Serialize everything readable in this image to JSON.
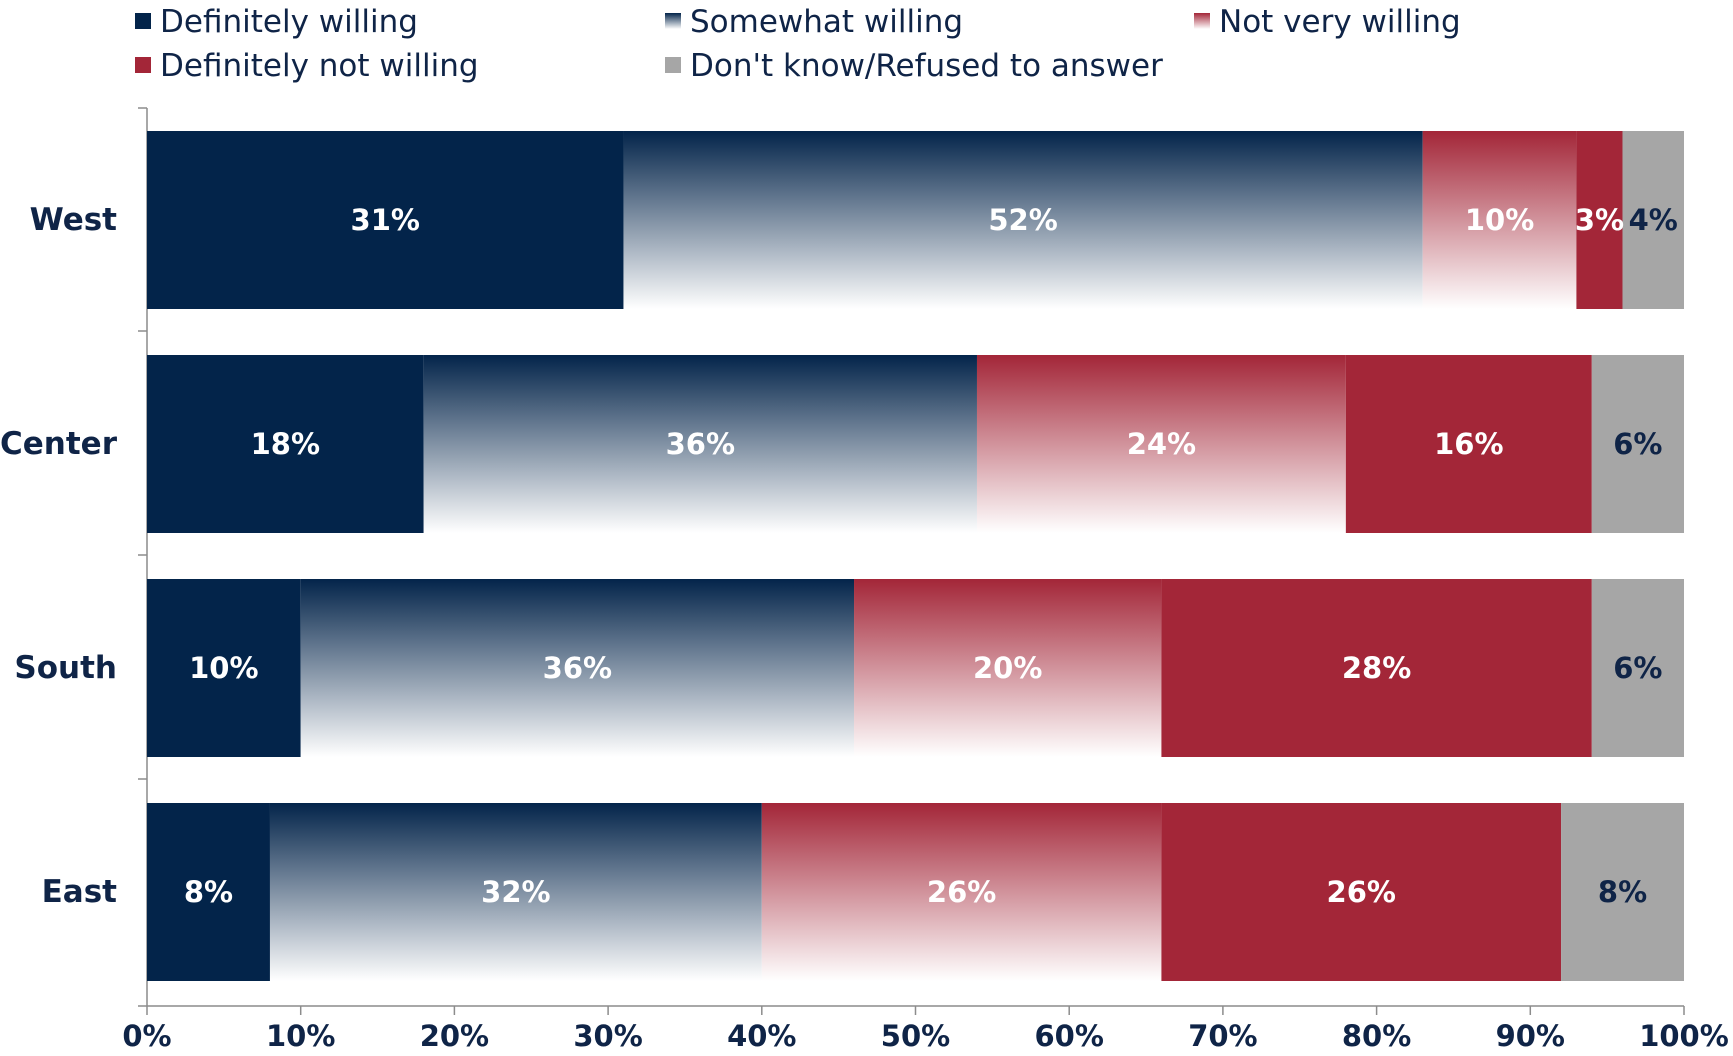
{
  "chart_data": {
    "type": "bar",
    "orientation": "horizontal",
    "stacked": true,
    "title": "",
    "xlabel": "",
    "ylabel": "",
    "xlim": [
      0,
      100
    ],
    "grid": false,
    "legend_position": "top",
    "categories": [
      "West",
      "Center",
      "South",
      "East"
    ],
    "series": [
      {
        "name": "Definitely willing",
        "color": "#03244a",
        "fill": "solid",
        "values": [
          31,
          18,
          10,
          8
        ],
        "labels": [
          "31%",
          "18%",
          "10%",
          "8%"
        ],
        "label_color": "#ffffff"
      },
      {
        "name": "Somewhat willing",
        "color": "#03244a",
        "fill": "gradient-navy-to-white",
        "values": [
          52,
          36,
          36,
          32
        ],
        "labels": [
          "52%",
          "36%",
          "36%",
          "32%"
        ],
        "label_color": "#ffffff"
      },
      {
        "name": "Not very willing",
        "color": "#a32638",
        "fill": "gradient-red-to-white",
        "values": [
          10,
          24,
          20,
          26
        ],
        "labels": [
          "10%",
          "24%",
          "20%",
          "26%"
        ],
        "label_color": "#ffffff"
      },
      {
        "name": "Definitely not willing",
        "color": "#a32638",
        "fill": "solid",
        "values": [
          3,
          16,
          28,
          26
        ],
        "labels": [
          "3%",
          "16%",
          "28%",
          "26%"
        ],
        "label_color": "#ffffff"
      },
      {
        "name": "Don't know/Refused to answer",
        "color": "#a6a6a6",
        "fill": "solid",
        "values": [
          4,
          6,
          6,
          8
        ],
        "labels": [
          "4%",
          "6%",
          "6%",
          "8%"
        ],
        "label_color": "#0f2447"
      }
    ],
    "x_ticks": [
      0,
      10,
      20,
      30,
      40,
      50,
      60,
      70,
      80,
      90,
      100
    ],
    "x_tick_labels": [
      "0%",
      "10%",
      "20%",
      "30%",
      "40%",
      "50%",
      "60%",
      "70%",
      "80%",
      "90%",
      "100%"
    ]
  }
}
